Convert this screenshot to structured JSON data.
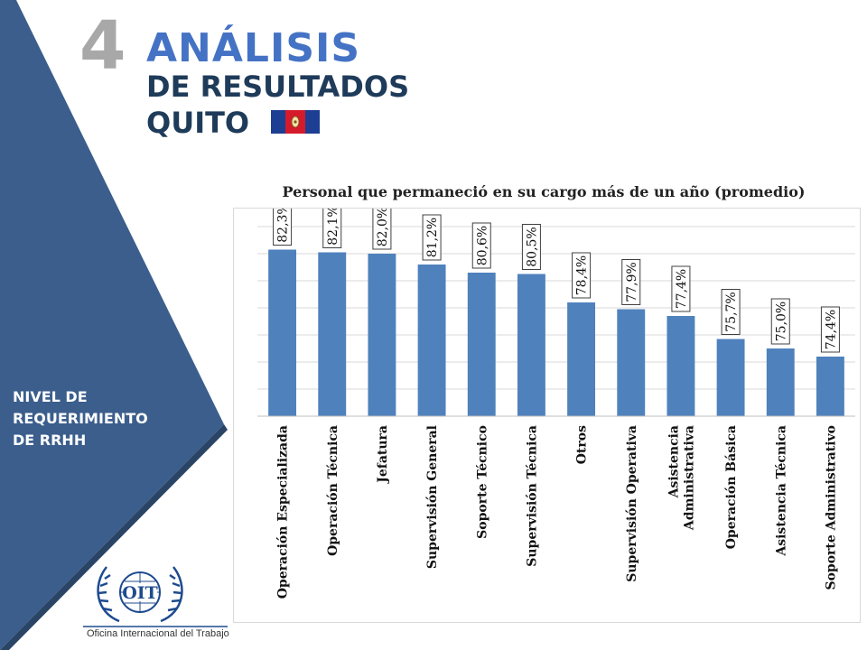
{
  "header": {
    "number": "4",
    "title": "ANÁLISIS",
    "subtitle": "DE RESULTADOS",
    "city": "QUITO",
    "flag_colors": [
      "#1d3f93",
      "#d51b2b",
      "#1d3f93"
    ]
  },
  "sidebar": {
    "label_lines": [
      "NIVEL DE",
      "REQUERIMIENTO",
      "DE RRHH"
    ],
    "color": "#3b5e8c",
    "bg_color": "#2f5280"
  },
  "logo": {
    "text": "OIT",
    "caption": "Oficina Internacional del Trabajo"
  },
  "chart_data": {
    "type": "bar",
    "title": "Personal que permaneció en su cargo más de un año (promedio)",
    "categories": [
      "Operación Especializada",
      "Operación Técnica",
      "Jefatura",
      "Supervisión General",
      "Soporte Técnico",
      "Supervisión Técnica",
      "Otros",
      "Supervisión Operativa",
      "Asistencia Administrativa",
      "Operación Básica",
      "Asistencia Técnica",
      "Soporte Administrativo"
    ],
    "values": [
      82.3,
      82.1,
      82.0,
      81.2,
      80.6,
      80.5,
      78.4,
      77.9,
      77.4,
      75.7,
      75.0,
      74.4
    ],
    "data_labels": [
      "82,3%",
      "82,1%",
      "82,0%",
      "81,2%",
      "80,6%",
      "80,5%",
      "78,4%",
      "77,9%",
      "77,4%",
      "75,7%",
      "75,0%",
      "74,4%"
    ],
    "ylim": [
      70,
      84
    ],
    "grid": true,
    "bar_color": "#4f81bd"
  }
}
